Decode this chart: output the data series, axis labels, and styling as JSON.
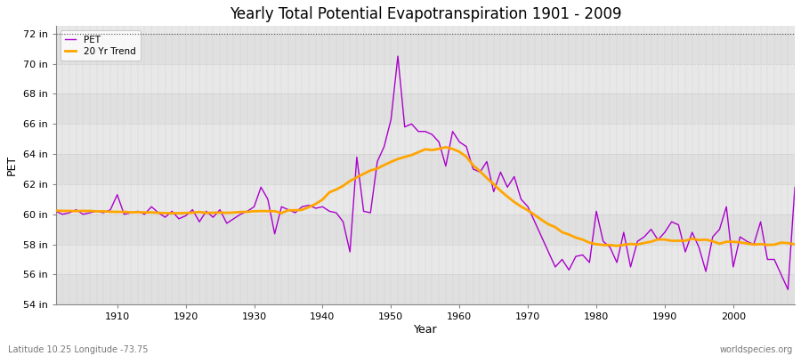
{
  "title": "Yearly Total Potential Evapotranspiration 1901 - 2009",
  "xlabel": "Year",
  "ylabel": "PET",
  "subtitle_lat": "Latitude 10.25 Longitude -73.75",
  "watermark": "worldspecies.org",
  "ylim": [
    54,
    72.5
  ],
  "xlim": [
    1901,
    2009
  ],
  "ytick_labels": [
    "54 in",
    "56 in",
    "58 in",
    "60 in",
    "62 in",
    "64 in",
    "66 in",
    "68 in",
    "70 in",
    "72 in"
  ],
  "ytick_values": [
    54,
    56,
    58,
    60,
    62,
    64,
    66,
    68,
    70,
    72
  ],
  "xtick_values": [
    1910,
    1920,
    1930,
    1940,
    1950,
    1960,
    1970,
    1980,
    1990,
    2000
  ],
  "pet_color": "#AA00CC",
  "trend_color": "#FFA500",
  "bg_color": "#E8E8E8",
  "bg_color2": "#DCDCDC",
  "dotted_line_y": 72,
  "pet_data": {
    "1901": 60.2,
    "1902": 60.0,
    "1903": 60.1,
    "1904": 60.3,
    "1905": 60.0,
    "1906": 60.1,
    "1907": 60.2,
    "1908": 60.1,
    "1909": 60.3,
    "1910": 61.3,
    "1911": 60.0,
    "1912": 60.1,
    "1913": 60.2,
    "1914": 60.0,
    "1915": 60.5,
    "1916": 60.1,
    "1917": 59.8,
    "1918": 60.2,
    "1919": 59.7,
    "1920": 59.9,
    "1921": 60.3,
    "1922": 59.5,
    "1923": 60.2,
    "1924": 59.8,
    "1925": 60.3,
    "1926": 59.4,
    "1927": 59.7,
    "1928": 60.0,
    "1929": 60.2,
    "1930": 60.5,
    "1931": 61.8,
    "1932": 61.0,
    "1933": 58.7,
    "1934": 60.5,
    "1935": 60.3,
    "1936": 60.1,
    "1937": 60.5,
    "1938": 60.6,
    "1939": 60.4,
    "1940": 60.5,
    "1941": 60.2,
    "1942": 60.1,
    "1943": 59.5,
    "1944": 57.5,
    "1945": 63.8,
    "1946": 60.2,
    "1947": 60.1,
    "1948": 63.5,
    "1949": 64.5,
    "1950": 66.3,
    "1951": 70.5,
    "1952": 65.8,
    "1953": 66.0,
    "1954": 65.5,
    "1955": 65.5,
    "1956": 65.3,
    "1957": 64.8,
    "1958": 63.2,
    "1959": 65.5,
    "1960": 64.8,
    "1961": 64.5,
    "1962": 63.0,
    "1963": 62.8,
    "1964": 63.5,
    "1965": 61.5,
    "1966": 62.8,
    "1967": 61.8,
    "1968": 62.5,
    "1969": 61.0,
    "1970": 60.5,
    "1971": 59.5,
    "1972": 58.5,
    "1973": 57.5,
    "1974": 56.5,
    "1975": 57.0,
    "1976": 56.3,
    "1977": 57.2,
    "1978": 57.3,
    "1979": 56.8,
    "1980": 60.2,
    "1981": 58.2,
    "1982": 57.8,
    "1983": 56.8,
    "1984": 58.8,
    "1985": 56.5,
    "1986": 58.2,
    "1987": 58.5,
    "1988": 59.0,
    "1989": 58.3,
    "1990": 58.8,
    "1991": 59.5,
    "1992": 59.3,
    "1993": 57.5,
    "1994": 58.8,
    "1995": 57.8,
    "1996": 56.2,
    "1997": 58.5,
    "1998": 59.0,
    "1999": 60.5,
    "2000": 56.5,
    "2001": 58.5,
    "2002": 58.2,
    "2003": 58.0,
    "2004": 59.5,
    "2005": 57.0,
    "2006": 57.0,
    "2007": 56.0,
    "2008": 55.0,
    "2009": 61.8
  }
}
